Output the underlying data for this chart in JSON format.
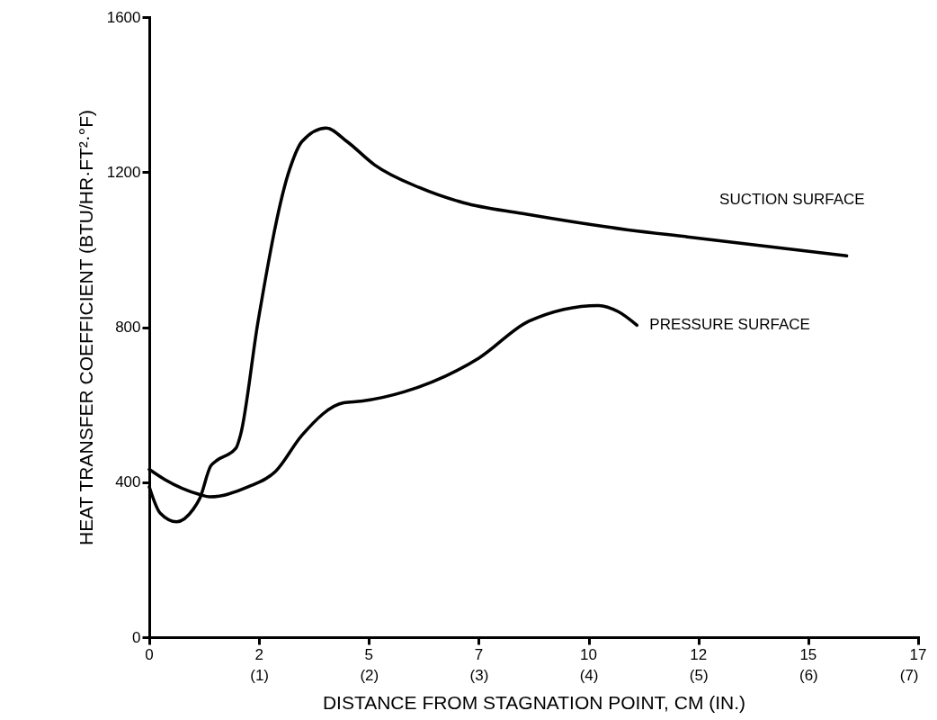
{
  "chart_data": {
    "type": "line",
    "xlabel": "DISTANCE FROM STAGNATION POINT, CM (IN.)",
    "ylabel": "HEAT TRANSFER COEFFICIENT (BTU/HR·FT²·°F)",
    "xlim": [
      0,
      7
    ],
    "xticks": [
      {
        "value": 0,
        "label": null
      },
      {
        "value": 1,
        "label": "(1)"
      },
      {
        "value": 2,
        "label": "(2)"
      },
      {
        "value": 3,
        "label": "(3)"
      },
      {
        "value": 4,
        "label": "(4)"
      },
      {
        "value": 5,
        "label": "(5)"
      },
      {
        "value": 6,
        "label": "(6)"
      },
      {
        "value": 7,
        "label": "(7)"
      }
    ],
    "annotations": [
      "0",
      "2",
      "5",
      "7",
      "10",
      "12",
      "15",
      "17"
    ],
    "ylim": [
      0,
      1600
    ],
    "yticks": [
      0,
      400,
      800,
      1200,
      1600
    ],
    "line_style": "solid",
    "series": [
      {
        "name": "SUCTION SURFACE",
        "color": "#000000",
        "x": [
          0,
          0.1,
          0.25,
          0.4,
          0.46,
          0.56,
          0.6,
          0.79,
          0.83,
          0.99,
          1.28,
          1.39,
          1.61,
          1.8,
          2.05,
          2.46,
          2.86,
          3.4,
          4.36,
          4.9,
          6.35
        ],
        "values": [
          388,
          320,
          298,
          330,
          358,
          442,
          453,
          488,
          521,
          814,
          1209,
          1279,
          1314,
          1279,
          1219,
          1160,
          1121,
          1093,
          1051,
          1033,
          984
        ]
      },
      {
        "name": "PRESSURE SURFACE",
        "color": "#000000",
        "x": [
          0,
          0.14,
          0.46,
          0.55,
          0.9,
          1.15,
          1.39,
          1.77,
          1.93,
          2.32,
          3.0,
          3.46,
          4.09,
          4.27,
          4.44
        ],
        "values": [
          433,
          407,
          368,
          362,
          388,
          428,
          521,
          605,
          609,
          633,
          720,
          816,
          856,
          840,
          805
        ]
      }
    ]
  }
}
